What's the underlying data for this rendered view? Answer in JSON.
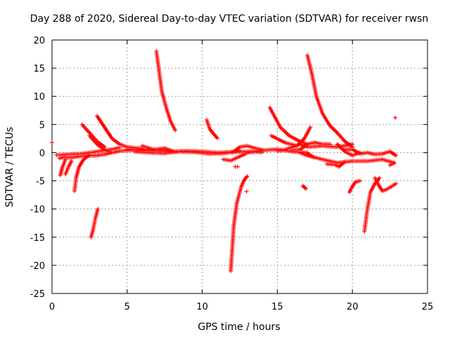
{
  "chart_data": {
    "type": "scatter",
    "title": "Day 288 of 2020, Sidereal Day-to-day VTEC variation (SDTVAR) for receiver rwsn",
    "xlabel": "GPS time / hours",
    "ylabel": "SDTVAR / TECUs",
    "xlim": [
      0,
      25
    ],
    "ylim": [
      -25,
      20
    ],
    "xticks": [
      0,
      5,
      10,
      15,
      20,
      25
    ],
    "yticks": [
      -25,
      -20,
      -15,
      -10,
      -5,
      0,
      5,
      10,
      15,
      20
    ],
    "xtick_labels": [
      "0",
      "5",
      "10",
      "15",
      "20",
      "25"
    ],
    "ytick_labels": [
      "-25",
      "-20",
      "-15",
      "-10",
      "-5",
      "0",
      "5",
      "10",
      "15",
      "20"
    ],
    "grid": true,
    "marker": "+",
    "color": "#ff0000",
    "series": [
      {
        "name": "t0",
        "x": [
          0.0
        ],
        "y": [
          1.8
        ]
      },
      {
        "name": "t1",
        "x": [
          0.3,
          0.6,
          1.0,
          2.0,
          3.0,
          4.0,
          4.5
        ],
        "y": [
          -0.4,
          -0.4,
          -0.3,
          -0.2,
          0.2,
          0.6,
          0.9
        ]
      },
      {
        "name": "t2",
        "x": [
          0.5,
          0.8,
          1.2,
          2.0,
          3.0,
          3.5,
          4.5,
          5.5,
          7.0,
          8.0
        ],
        "y": [
          -1.0,
          -0.8,
          -0.9,
          -0.6,
          -0.5,
          -0.3,
          0.3,
          0.5,
          0.6,
          0.3
        ]
      },
      {
        "name": "t3",
        "x": [
          0.55,
          0.7,
          0.9
        ],
        "y": [
          -4.0,
          -2.5,
          -1.2
        ]
      },
      {
        "name": "t4",
        "x": [
          0.9,
          1.1,
          1.3
        ],
        "y": [
          -3.8,
          -2.5,
          -1.5
        ]
      },
      {
        "name": "t5",
        "x": [
          1.5,
          1.6,
          1.8,
          2.1,
          2.5
        ],
        "y": [
          -6.8,
          -4.5,
          -2.5,
          -1.2,
          -0.4
        ]
      },
      {
        "name": "t6",
        "x": [
          2.0,
          2.5,
          3.0,
          3.5
        ],
        "y": [
          5.0,
          3.5,
          2.0,
          1.0
        ]
      },
      {
        "name": "t7",
        "x": [
          2.6,
          2.75,
          2.9,
          3.05
        ],
        "y": [
          -15.0,
          -13.5,
          -11.5,
          -10.0
        ]
      },
      {
        "name": "t8",
        "x": [
          3.0,
          3.5,
          4.0,
          4.5,
          5.0,
          6.0
        ],
        "y": [
          6.5,
          4.5,
          2.5,
          1.5,
          1.0,
          0.7
        ]
      },
      {
        "name": "t9",
        "x": [
          2.5,
          3.0,
          3.5,
          4.0
        ],
        "y": [
          3.0,
          1.5,
          0.5,
          0.0
        ]
      },
      {
        "name": "t10",
        "x": [
          5.0,
          6.0,
          7.0,
          8.0,
          9.0,
          10.0,
          11.0,
          12.0,
          13.0,
          14.0
        ],
        "y": [
          0.6,
          0.4,
          0.3,
          0.2,
          0.3,
          0.2,
          0.0,
          0.1,
          0.2,
          0.1
        ]
      },
      {
        "name": "t11",
        "x": [
          5.5,
          6.5,
          7.5,
          8.5,
          9.5,
          10.5,
          11.5,
          12.5
        ],
        "y": [
          0.2,
          0.0,
          -0.1,
          0.2,
          0.1,
          -0.2,
          -0.1,
          0.4
        ]
      },
      {
        "name": "t12",
        "x": [
          6.0,
          6.8,
          7.5,
          8.0
        ],
        "y": [
          1.2,
          0.5,
          0.8,
          0.3
        ]
      },
      {
        "name": "t13",
        "x": [
          6.95,
          7.1,
          7.3,
          7.6,
          7.9,
          8.2
        ],
        "y": [
          18.0,
          15.0,
          11.0,
          8.0,
          5.5,
          4.0
        ]
      },
      {
        "name": "t14",
        "x": [
          10.3,
          10.5,
          10.8,
          11.0
        ],
        "y": [
          5.8,
          4.2,
          3.2,
          2.6
        ]
      },
      {
        "name": "t15",
        "x": [
          11.4,
          11.9,
          12.4,
          12.9
        ],
        "y": [
          -1.2,
          -1.4,
          -0.8,
          -0.2
        ]
      },
      {
        "name": "t16",
        "x": [
          11.9,
          12.0,
          12.1,
          12.3,
          12.6,
          12.8,
          13.0
        ],
        "y": [
          -21.0,
          -17.0,
          -13.0,
          -9.0,
          -6.0,
          -4.8,
          -4.2
        ]
      },
      {
        "name": "t17",
        "x": [
          12.2,
          12.35
        ],
        "y": [
          -2.5,
          -2.5
        ]
      },
      {
        "name": "t18",
        "x": [
          12.95
        ],
        "y": [
          -6.9
        ]
      },
      {
        "name": "t19",
        "x": [
          12.0,
          12.5,
          13.0,
          13.5,
          14.0
        ],
        "y": [
          0.0,
          1.0,
          1.2,
          0.8,
          0.5
        ]
      },
      {
        "name": "t20",
        "x": [
          13.0,
          14.0,
          15.0,
          16.0,
          17.0
        ],
        "y": [
          0.0,
          0.4,
          0.6,
          0.2,
          0.0
        ]
      },
      {
        "name": "t21",
        "x": [
          14.5,
          14.8,
          15.2,
          15.8,
          16.5,
          17.0
        ],
        "y": [
          8.0,
          6.5,
          4.5,
          3.0,
          2.0,
          1.5
        ]
      },
      {
        "name": "t22",
        "x": [
          14.6,
          15.5,
          16.3,
          16.8,
          17.2
        ],
        "y": [
          3.0,
          1.8,
          1.2,
          2.5,
          4.5
        ]
      },
      {
        "name": "t23",
        "x": [
          15.0,
          15.5,
          16.0,
          16.5,
          17.0,
          18.0,
          19.0,
          20.0
        ],
        "y": [
          0.3,
          0.5,
          1.0,
          1.5,
          1.0,
          1.2,
          1.0,
          1.5
        ]
      },
      {
        "name": "t24",
        "x": [
          16.0,
          16.5,
          17.0,
          17.5,
          18.0,
          18.5
        ],
        "y": [
          0.5,
          0.5,
          1.5,
          1.8,
          1.5,
          1.5
        ]
      },
      {
        "name": "t25",
        "x": [
          16.5,
          17.0,
          18.0,
          19.0,
          20.0,
          21.0,
          22.0,
          22.8
        ],
        "y": [
          0.0,
          -0.5,
          -1.2,
          -1.8,
          -1.5,
          -1.5,
          -1.2,
          -1.8
        ]
      },
      {
        "name": "t26",
        "x": [
          17.0,
          17.3,
          17.6,
          18.0,
          18.5,
          19.0,
          19.5,
          20.0
        ],
        "y": [
          17.3,
          14.0,
          10.0,
          7.0,
          4.8,
          3.5,
          2.0,
          1.0
        ]
      },
      {
        "name": "t27",
        "x": [
          19.0,
          19.5,
          20.0,
          20.5
        ],
        "y": [
          1.5,
          0.2,
          -0.5,
          0.0
        ]
      },
      {
        "name": "t28",
        "x": [
          19.5,
          20.0,
          20.5,
          21.0,
          21.5,
          22.0,
          22.5,
          22.9
        ],
        "y": [
          0.5,
          0.6,
          -0.2,
          0.0,
          -0.3,
          -0.2,
          0.2,
          -0.5
        ]
      },
      {
        "name": "t29",
        "x": [
          17.0,
          17.4
        ],
        "y": [
          -0.1,
          -0.8
        ]
      },
      {
        "name": "t30",
        "x": [
          16.7,
          16.9
        ],
        "y": [
          -5.9,
          -6.4
        ]
      },
      {
        "name": "t31",
        "x": [
          18.3,
          18.8,
          19.1,
          19.5
        ],
        "y": [
          -2.0,
          -2.1,
          -2.5,
          -1.6
        ]
      },
      {
        "name": "t32",
        "x": [
          19.8,
          20.0,
          20.2,
          20.5
        ],
        "y": [
          -7.0,
          -6.0,
          -5.2,
          -5.0
        ]
      },
      {
        "name": "t33",
        "x": [
          20.8,
          20.9,
          21.0,
          21.2,
          21.5,
          21.8
        ],
        "y": [
          -14.0,
          -12.0,
          -10.0,
          -7.0,
          -5.5,
          -4.5
        ]
      },
      {
        "name": "t34",
        "x": [
          21.5,
          21.8,
          22.0,
          22.3,
          22.6,
          22.9
        ],
        "y": [
          -4.5,
          -6.0,
          -6.8,
          -6.5,
          -6.0,
          -5.5
        ]
      },
      {
        "name": "t35",
        "x": [
          22.5,
          22.8
        ],
        "y": [
          -2.2,
          -1.8
        ]
      },
      {
        "name": "t36",
        "x": [
          22.85
        ],
        "y": [
          6.2
        ]
      }
    ]
  }
}
